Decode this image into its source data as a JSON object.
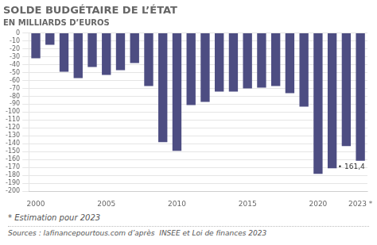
{
  "chart_data": {
    "type": "bar",
    "title": "SOLDE BUDGÉTAIRE DE L’ÉTAT",
    "subtitle": "EN MILLIARDS D’EUROS",
    "categories": [
      "2000",
      null,
      null,
      null,
      null,
      "2005",
      null,
      null,
      null,
      null,
      "2010",
      null,
      null,
      null,
      null,
      "2015",
      null,
      null,
      null,
      null,
      "2020",
      null,
      null,
      "2023 *"
    ],
    "values": [
      -32,
      -15,
      -49,
      -57,
      -43,
      -53,
      -47,
      -38,
      -67,
      -138,
      -149,
      -91,
      -87,
      -74,
      -74,
      -70,
      -69,
      -67,
      -76,
      -93,
      -178,
      -171,
      -143,
      -161.4
    ],
    "color": "#4d4d82",
    "annotation": "• 161,4",
    "footnote": "* Estimation pour 2023",
    "source": "Sources : lafinancepourtous.com d’après  INSEE et Loi de finances 2023",
    "ylim": [
      -200,
      0
    ],
    "yticks": [
      0,
      -10,
      -20,
      -30,
      -40,
      -50,
      -60,
      -70,
      -80,
      -90,
      -100,
      -110,
      -120,
      -130,
      -140,
      -150,
      -160,
      -170,
      -180,
      -190,
      -200
    ],
    "grid": true
  }
}
